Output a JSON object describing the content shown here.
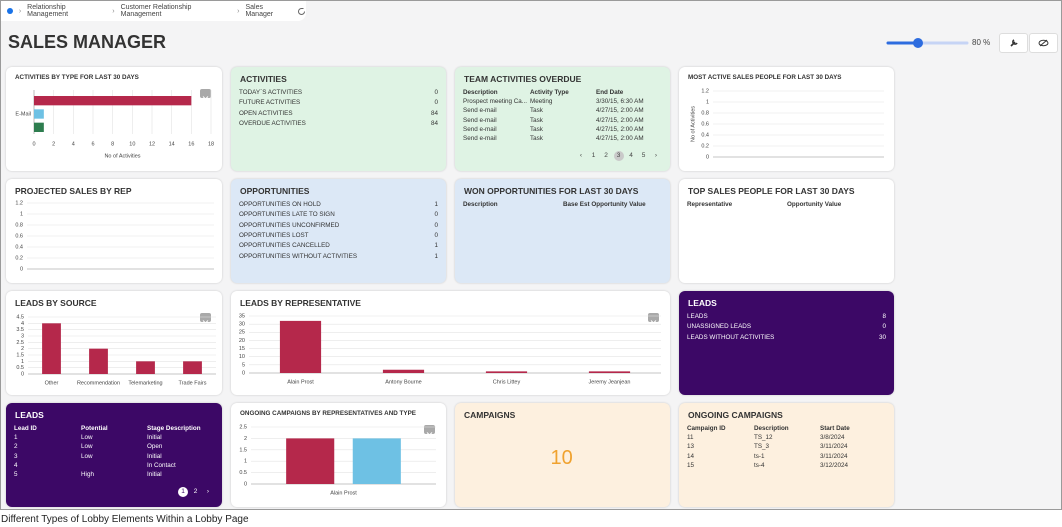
{
  "breadcrumb": [
    "Relationship Management",
    "Customer Relationship Management",
    "Sales Manager"
  ],
  "title": "SALES MANAGER",
  "zoom": "80 %",
  "caption": "Different Types of Lobby Elements Within a Lobby Page",
  "widgets": [
    {
      "title": "ACTIVITIES BY TYPE FOR LAST 30 DAYS",
      "chart": {
        "type": "hbar",
        "categories": [
          null,
          "E-Mail",
          null
        ],
        "values": [
          16,
          1,
          1
        ],
        "colors": [
          "#b5284b",
          "#6ec1e4",
          "#2e7d4f"
        ],
        "xlim": [
          0,
          18
        ],
        "xticks": [
          0,
          2,
          4,
          6,
          8,
          10,
          12,
          14,
          16,
          18
        ],
        "xlabel": "No of Activities",
        "grid": true
      }
    },
    {
      "title": "ACTIVITIES",
      "items": [
        {
          "label": "TODAY`S ACTIVITIES",
          "value": 0
        },
        {
          "label": "FUTURE ACTIVITIES",
          "value": 0
        },
        {
          "label": "OPEN ACTIVITIES",
          "value": 84
        },
        {
          "label": "OVERDUE ACTIVITIES",
          "value": 84
        }
      ]
    },
    {
      "title": "TEAM ACTIVITIES OVERDUE",
      "table": {
        "columns": [
          "Description",
          "Activity Type",
          "End Date"
        ],
        "rows": [
          [
            "Prospect meeting Ca...",
            "Meeting",
            "3/30/15, 6:30 AM"
          ],
          [
            "Send e-mail",
            "Task",
            "4/27/15, 2:00 AM"
          ],
          [
            "Send e-mail",
            "Task",
            "4/27/15, 2:00 AM"
          ],
          [
            "Send e-mail",
            "Task",
            "4/27/15, 2:00 AM"
          ],
          [
            "Send e-mail",
            "Task",
            "4/27/15, 2:00 AM"
          ]
        ]
      },
      "pages": [
        1,
        2,
        3,
        4,
        5
      ],
      "current_page": 3
    },
    {
      "title": "MOST ACTIVE SALES PEOPLE FOR LAST 30 DAYS",
      "chart": {
        "type": "bar",
        "categories": [],
        "values": [],
        "ylim": [
          0,
          1.2
        ],
        "yticks": [
          0,
          0.2,
          0.4,
          0.6,
          0.8,
          1,
          1.2
        ],
        "ylabel": "No of Activities",
        "grid": true
      }
    },
    {
      "title": "PROJECTED SALES BY REP",
      "chart": {
        "type": "bar",
        "categories": [],
        "values": [],
        "ylim": [
          0,
          1.2
        ],
        "yticks": [
          0,
          0.2,
          0.4,
          0.6,
          0.8,
          1,
          1.2
        ],
        "grid": true
      }
    },
    {
      "title": "OPPORTUNITIES",
      "items": [
        {
          "label": "OPPORTUNITIES ON HOLD",
          "value": 1
        },
        {
          "label": "OPPORTUNITIES LATE TO SIGN",
          "value": 0
        },
        {
          "label": "OPPORTUNITIES UNCONFIRMED",
          "value": 0
        },
        {
          "label": "OPPORTUNITIES LOST",
          "value": 0
        },
        {
          "label": "OPPORTUNITIES CANCELLED",
          "value": 1
        },
        {
          "label": "OPPORTUNITIES WITHOUT ACTIVITIES",
          "value": 1
        }
      ]
    },
    {
      "title": "WON OPPORTUNITIES FOR LAST 30 DAYS",
      "table": {
        "columns": [
          "Description",
          "Base Est Opportunity Value"
        ],
        "rows": []
      }
    },
    {
      "title": "TOP SALES PEOPLE FOR LAST 30 DAYS",
      "table": {
        "columns": [
          "Representative",
          "Opportunity Value"
        ],
        "rows": []
      }
    },
    {
      "title": "LEADS BY SOURCE",
      "chart": {
        "type": "bar",
        "categories": [
          "Other",
          "Recommendation",
          "Telemarketing",
          "Trade Fairs"
        ],
        "values": [
          4,
          2,
          1,
          1
        ],
        "color": "#b5284b",
        "ylim": [
          0,
          4.5
        ],
        "yticks": [
          0,
          0.5,
          1,
          1.5,
          2,
          2.5,
          3,
          3.5,
          4,
          4.5
        ],
        "grid": true
      }
    },
    {
      "title": "LEADS BY REPRESENTATIVE",
      "chart": {
        "type": "bar",
        "categories": [
          "Alain Prost",
          "Antony Bourne",
          "Chris Littey",
          "Jeremy Jeanjean"
        ],
        "values": [
          32,
          2,
          1,
          1
        ],
        "color": "#b5284b",
        "ylim": [
          0,
          35
        ],
        "yticks": [
          0,
          5,
          10,
          15,
          20,
          25,
          30,
          35
        ],
        "grid": true
      }
    },
    {
      "title": "LEADS",
      "items": [
        {
          "label": "LEADS",
          "value": 8
        },
        {
          "label": "UNASSIGNED LEADS",
          "value": 0
        },
        {
          "label": "LEADS WITHOUT ACTIVITIES",
          "value": 30
        }
      ]
    },
    {
      "title": "LEADS",
      "table": {
        "columns": [
          "Lead ID",
          "Potential",
          "Stage Description"
        ],
        "rows": [
          [
            "1",
            "Low",
            "Initial"
          ],
          [
            "2",
            "Low",
            "Open"
          ],
          [
            "3",
            "Low",
            "Initial"
          ],
          [
            "4",
            null,
            "In Contact"
          ],
          [
            "5",
            "High",
            "Initial"
          ]
        ]
      },
      "pages": [
        1,
        2
      ],
      "current_page": 1
    },
    {
      "title": "ONGOING CAMPAIGNS BY REPRESENTATIVES AND TYPE",
      "chart": {
        "type": "grouped-bar",
        "categories": [
          "Alain Prost"
        ],
        "series": [
          {
            "color": "#b5284b",
            "values": [
              2
            ]
          },
          {
            "color": "#6ec1e4",
            "values": [
              2
            ]
          }
        ],
        "ylim": [
          0,
          2.5
        ],
        "yticks": [
          0,
          0.5,
          1,
          1.5,
          2,
          2.5
        ],
        "grid": true
      }
    },
    {
      "title": "CAMPAIGNS",
      "value": 10
    },
    {
      "title": "ONGOING CAMPAIGNS",
      "table": {
        "columns": [
          "Campaign ID",
          "Description",
          "Start Date"
        ],
        "rows": [
          [
            "11",
            "TS_12",
            "3/8/2024"
          ],
          [
            "13",
            "TS_3",
            "3/11/2024"
          ],
          [
            "14",
            "ts-1",
            "3/11/2024"
          ],
          [
            "15",
            "ts-4",
            "3/12/2024"
          ]
        ]
      }
    }
  ]
}
